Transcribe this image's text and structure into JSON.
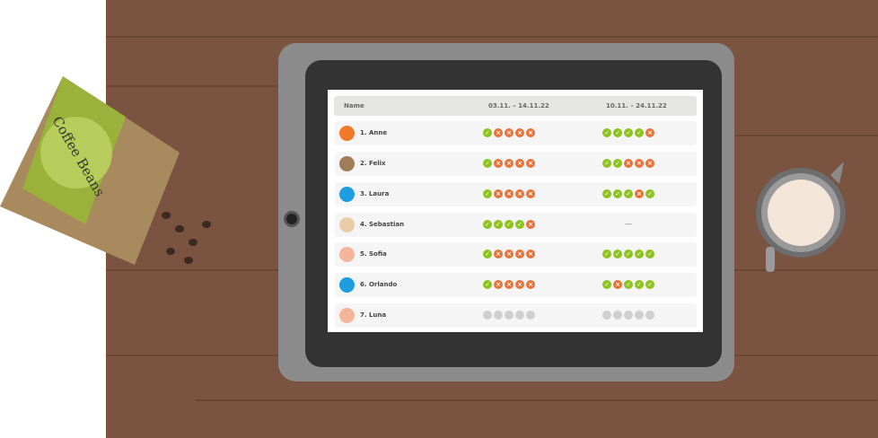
{
  "table": {
    "headers": [
      "Name",
      "03.11. – 14.11.22",
      "10.11. – 24.11.22"
    ],
    "rows": [
      {
        "name": "1. Anne",
        "avatar": "fox",
        "avatar_color": "#f07a2a",
        "p1": "cxxxx",
        "p2": "ccccx"
      },
      {
        "name": "2. Felix",
        "avatar": "rabbit",
        "avatar_color": "#a07c58",
        "p1": "cxxxx",
        "p2": "ccxxx"
      },
      {
        "name": "3. Laura",
        "avatar": "bird",
        "avatar_color": "#1e9de0",
        "p1": "cxxxx",
        "p2": "cccxc"
      },
      {
        "name": "4. Sebastian",
        "avatar": "man",
        "avatar_color": "#e9cba8",
        "p1": "ccccx",
        "p2": "—"
      },
      {
        "name": "5. Sofia",
        "avatar": "pig",
        "avatar_color": "#f4b59a",
        "p1": "cxxxx",
        "p2": "ccccc"
      },
      {
        "name": "6. Orlando",
        "avatar": "bird",
        "avatar_color": "#1e9de0",
        "p1": "cxxxx",
        "p2": "cxccc"
      },
      {
        "name": "7. Luna",
        "avatar": "pig",
        "avatar_color": "#f4b59a",
        "p1": "nnnnn",
        "p2": "nnnnn"
      }
    ]
  },
  "colors": {
    "check": "#8dc21f",
    "cross": "#e8733a",
    "pending": "#cfcfcf",
    "wood": "#7a5441"
  },
  "decor": {
    "bag_text": "Coffee Beans"
  }
}
